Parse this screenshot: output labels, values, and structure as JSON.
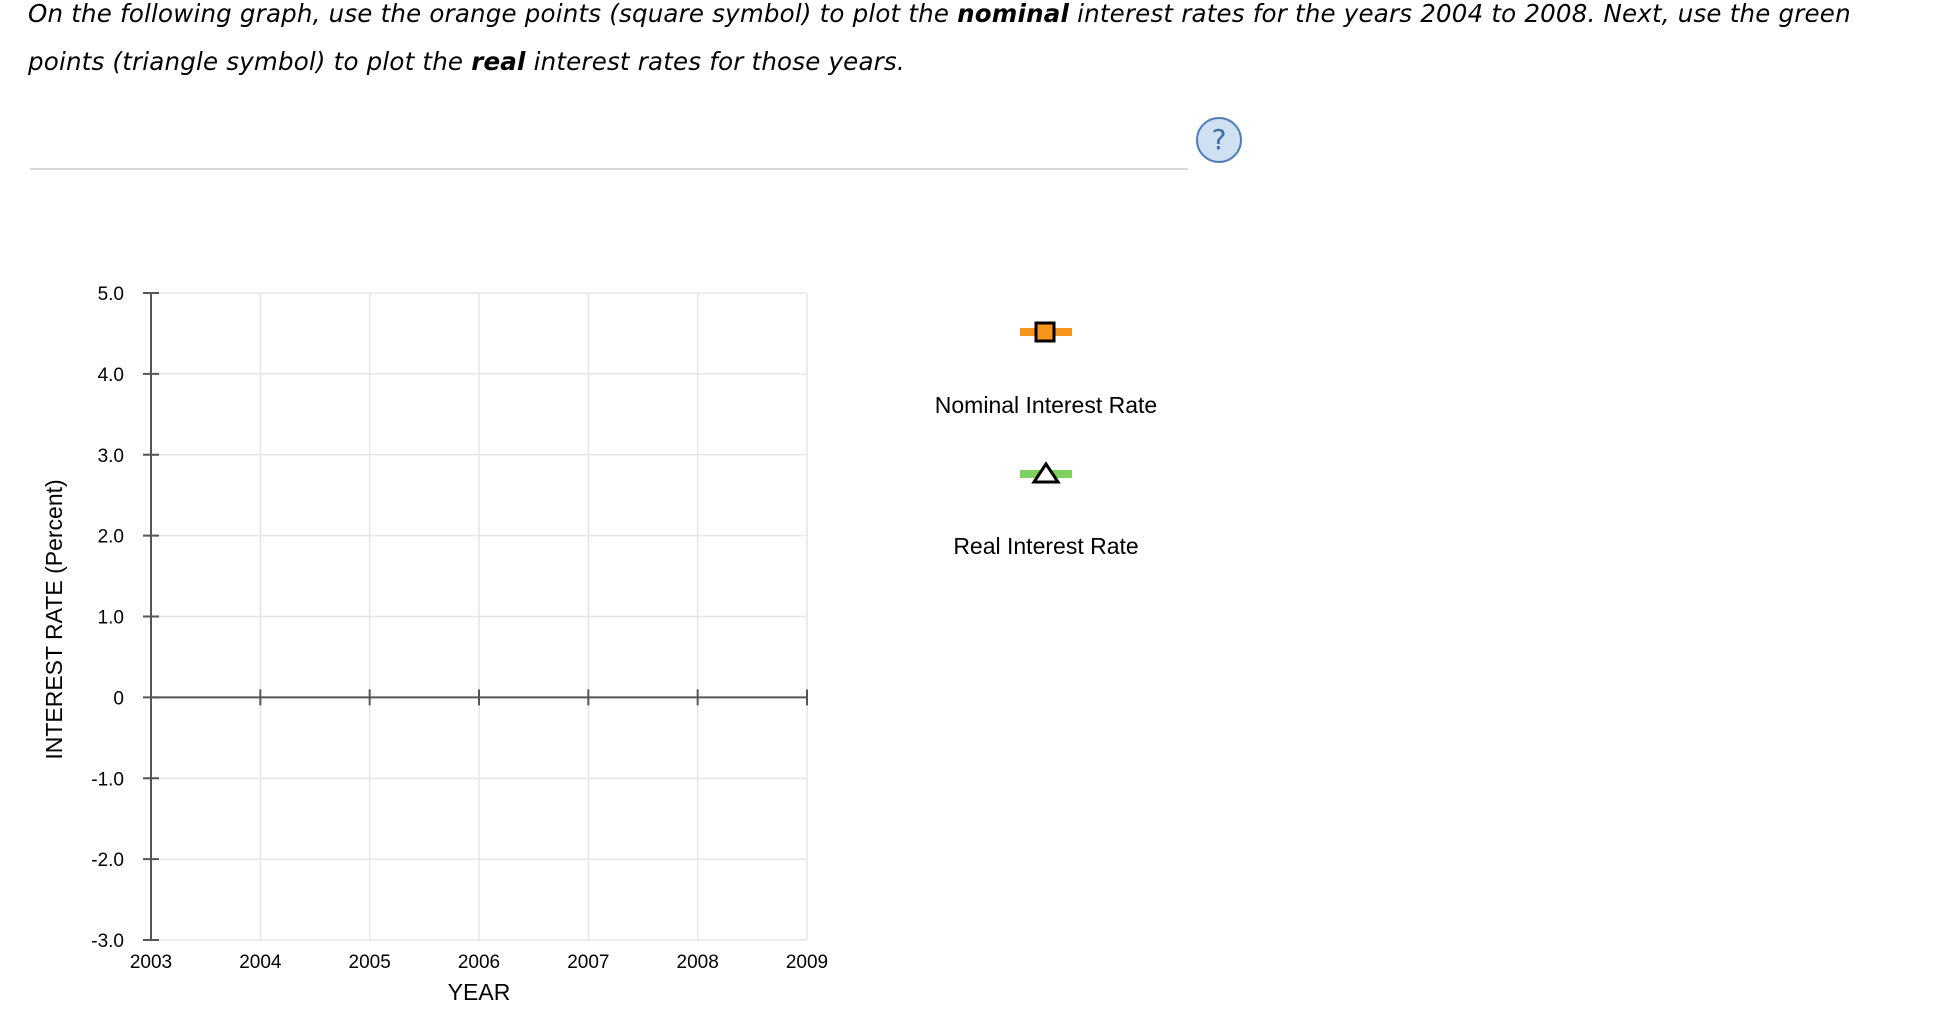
{
  "instructions": {
    "part1": "On the following graph, use the orange points (square symbol) to plot the ",
    "bold1": "nominal",
    "part2": " interest rates for the years 2004 to 2008. Next, use the green points (triangle symbol) to plot the ",
    "bold2": "real",
    "part3": " interest rates for those years."
  },
  "help": {
    "icon": "question-icon",
    "label": "?"
  },
  "chart_data": {
    "type": "scatter",
    "xlabel": "YEAR",
    "ylabel": "INTEREST RATE (Percent)",
    "xlim": [
      2003,
      2009
    ],
    "ylim": [
      -3.0,
      5.0
    ],
    "x_ticks": [
      2003,
      2004,
      2005,
      2006,
      2007,
      2008,
      2009
    ],
    "x_tick_labels": [
      "2003",
      "2004",
      "2005",
      "2006",
      "2007",
      "2008",
      "2009"
    ],
    "y_ticks": [
      5.0,
      4.0,
      3.0,
      2.0,
      1.0,
      0,
      -1.0,
      -2.0,
      -3.0
    ],
    "y_tick_labels": [
      "5.0",
      "4.0",
      "3.0",
      "2.0",
      "1.0",
      "0",
      "-1.0",
      "-2.0",
      "-3.0"
    ],
    "grid": true,
    "series": [
      {
        "name": "Nominal Interest Rate",
        "symbol": "square",
        "color": "#f7941d",
        "points": []
      },
      {
        "name": "Real Interest Rate",
        "symbol": "triangle",
        "color": "#7fd15f",
        "points": []
      }
    ]
  },
  "legend": {
    "nominal_label": "Nominal Interest Rate",
    "real_label": "Real Interest Rate"
  }
}
